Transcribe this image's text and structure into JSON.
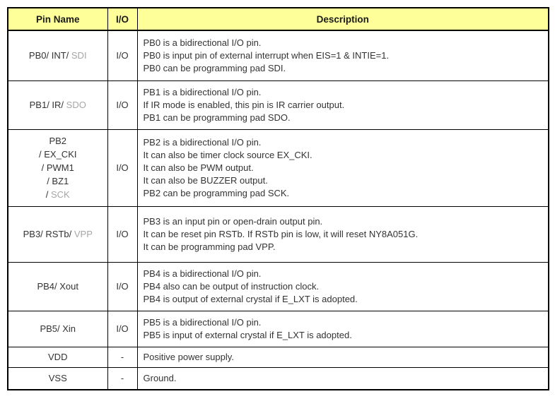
{
  "table": {
    "colors": {
      "header_bg": "#FFFF99",
      "border": "#000000",
      "text": "#333333",
      "muted_text": "#A6A6A6"
    },
    "columns": [
      {
        "key": "pin",
        "label": "Pin Name"
      },
      {
        "key": "io",
        "label": "I/O"
      },
      {
        "key": "desc",
        "label": "Description"
      }
    ],
    "rows": [
      {
        "pin_lines": [
          [
            {
              "text": "PB0/ INT/ ",
              "muted": false
            },
            {
              "text": "SDI",
              "muted": true
            }
          ]
        ],
        "io": "I/O",
        "desc_lines": [
          "PB0 is a bidirectional I/O pin.",
          "PB0 is input pin of external interrupt when EIS=1 & INTIE=1.",
          "PB0 can be programming pad SDI."
        ]
      },
      {
        "pin_lines": [
          [
            {
              "text": "PB1/ IR/ ",
              "muted": false
            },
            {
              "text": "SDO",
              "muted": true
            }
          ]
        ],
        "io": "I/O",
        "desc_lines": [
          "PB1 is a bidirectional I/O pin.",
          "If IR mode is enabled, this pin is IR carrier output.",
          "PB1 can be programming pad SDO."
        ]
      },
      {
        "pin_lines": [
          [
            {
              "text": "PB2",
              "muted": false
            }
          ],
          [
            {
              "text": "/ EX_CKI",
              "muted": false
            }
          ],
          [
            {
              "text": "/ PWM1",
              "muted": false
            }
          ],
          [
            {
              "text": "/ BZ1",
              "muted": false
            }
          ],
          [
            {
              "text": "/ ",
              "muted": false
            },
            {
              "text": "SCK",
              "muted": true
            }
          ]
        ],
        "io": "I/O",
        "desc_lines": [
          "PB2 is a bidirectional I/O pin.",
          "It can also be timer clock source EX_CKI.",
          "It can also be PWM output.",
          "It can also be BUZZER output.",
          "PB2 can be programming pad SCK."
        ]
      },
      {
        "pin_lines": [
          [
            {
              "text": "PB3/ RSTb/ ",
              "muted": false
            },
            {
              "text": "VPP",
              "muted": true
            }
          ]
        ],
        "io": "I/O",
        "desc_lines": [
          "PB3 is an input pin or open-drain output pin.",
          "It can be reset pin RSTb. If RSTb pin is low, it will reset NY8A051G.",
          "It can be programming pad VPP."
        ]
      },
      {
        "pin_lines": [
          [
            {
              "text": "PB4/ Xout",
              "muted": false
            }
          ]
        ],
        "io": "I/O",
        "desc_lines": [
          "PB4 is a bidirectional I/O pin.",
          "PB4 also can be output of instruction clock.",
          "PB4 is output of external crystal if E_LXT is adopted."
        ]
      },
      {
        "pin_lines": [
          [
            {
              "text": "PB5/ Xin",
              "muted": false
            }
          ]
        ],
        "io": "I/O",
        "desc_lines": [
          "PB5 is a bidirectional I/O pin.",
          "PB5 is input of external crystal if E_LXT is adopted."
        ]
      },
      {
        "pin_lines": [
          [
            {
              "text": "VDD",
              "muted": false
            }
          ]
        ],
        "io": "-",
        "desc_lines": [
          "Positive power supply."
        ]
      },
      {
        "pin_lines": [
          [
            {
              "text": "VSS",
              "muted": false
            }
          ]
        ],
        "io": "-",
        "desc_lines": [
          "Ground."
        ]
      }
    ]
  }
}
